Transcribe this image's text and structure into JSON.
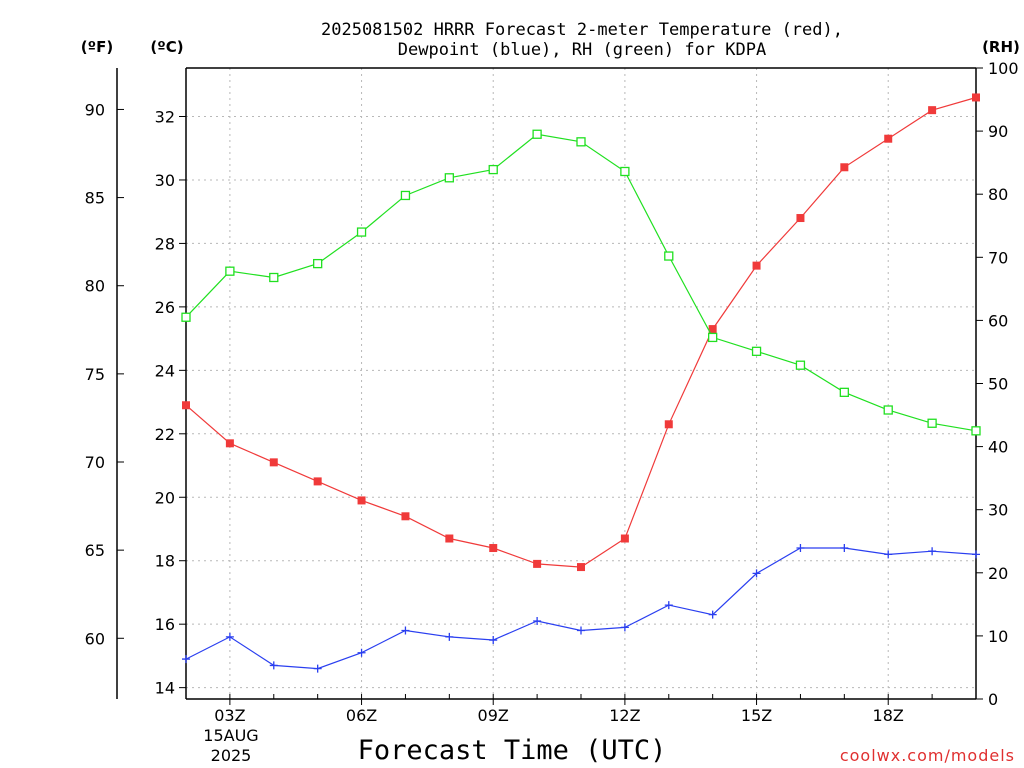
{
  "chart_data": {
    "type": "line",
    "title_line1": "2025081502 HRRR Forecast 2-meter Temperature (red),",
    "title_line2": "Dewpoint (blue), RH (green) for KDPA",
    "xlabel": "Forecast Time (UTC)",
    "credit": "coolwx.com/models",
    "unit_f": "(ºF)",
    "unit_c": "(ºC)",
    "unit_rh": "(RH)",
    "x_tick_labels": [
      {
        "hour": 3,
        "label": "03Z"
      },
      {
        "hour": 6,
        "label": "06Z"
      },
      {
        "hour": 9,
        "label": "09Z"
      },
      {
        "hour": 12,
        "label": "12Z"
      },
      {
        "hour": 15,
        "label": "15Z"
      },
      {
        "hour": 18,
        "label": "18Z"
      }
    ],
    "date_label_line1": "15AUG",
    "date_label_line2": "2025",
    "xlim": [
      2,
      20
    ],
    "c_ticks": [
      14,
      16,
      18,
      20,
      22,
      24,
      26,
      28,
      30,
      32
    ],
    "f_ticks": [
      60,
      65,
      70,
      75,
      80,
      85,
      90
    ],
    "rh_ticks": [
      0,
      10,
      20,
      30,
      40,
      50,
      60,
      70,
      80,
      90,
      100
    ],
    "ylim_rh": [
      0,
      100
    ],
    "grid": true,
    "series": [
      {
        "name": "Temperature",
        "axis": "C",
        "color": "#f03a3a",
        "marker": "filled-square",
        "x": [
          2,
          3,
          4,
          5,
          6,
          7,
          8,
          9,
          10,
          11,
          12,
          13,
          14,
          15,
          16,
          17,
          18,
          19,
          20
        ],
        "values": [
          22.9,
          21.7,
          21.1,
          20.5,
          19.9,
          19.4,
          18.7,
          18.4,
          17.9,
          17.8,
          18.7,
          22.3,
          25.3,
          27.3,
          28.8,
          30.4,
          31.3,
          32.2,
          32.6
        ]
      },
      {
        "name": "Dewpoint",
        "axis": "C",
        "color": "#2a3ff0",
        "marker": "plus",
        "x": [
          2,
          3,
          4,
          5,
          6,
          7,
          8,
          9,
          10,
          11,
          12,
          13,
          14,
          15,
          16,
          17,
          18,
          19,
          20
        ],
        "values": [
          14.9,
          15.6,
          14.7,
          14.6,
          15.1,
          15.8,
          15.6,
          15.5,
          16.1,
          15.8,
          15.9,
          16.6,
          16.3,
          17.6,
          18.4,
          18.4,
          18.2,
          18.3,
          18.2
        ]
      },
      {
        "name": "RH",
        "axis": "RH",
        "color": "#20e020",
        "marker": "open-square",
        "x": [
          2,
          3,
          4,
          5,
          6,
          7,
          8,
          9,
          10,
          11,
          12,
          13,
          14,
          15,
          16,
          17,
          18,
          19,
          20
        ],
        "values": [
          60.5,
          67.8,
          66.8,
          69.0,
          74.0,
          79.8,
          82.6,
          83.9,
          89.5,
          88.3,
          83.6,
          70.2,
          57.3,
          55.1,
          52.9,
          48.6,
          45.8,
          43.7,
          42.5
        ]
      }
    ]
  }
}
